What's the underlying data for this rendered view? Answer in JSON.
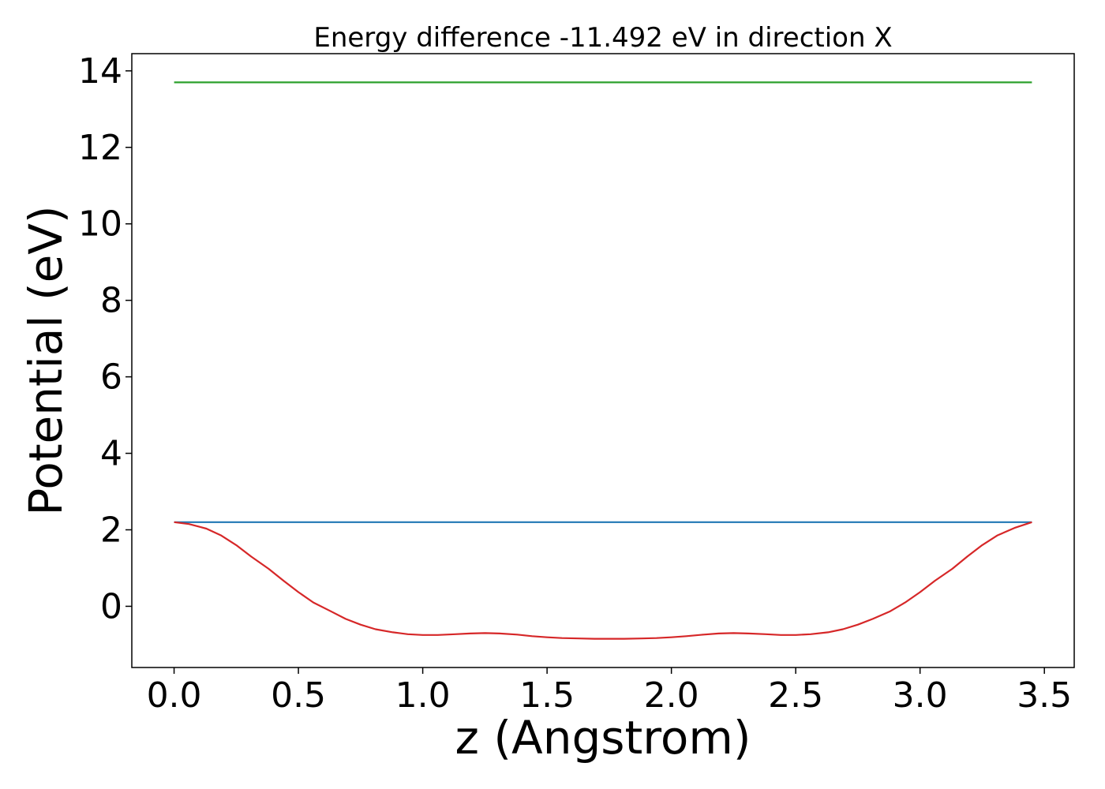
{
  "chart_data": {
    "type": "line",
    "title": "Energy difference -11.492 eV in direction X",
    "xlabel": "z (Angstrom)",
    "ylabel": "Potential (eV)",
    "xlim": [
      -0.17,
      3.62
    ],
    "ylim": [
      -1.6,
      14.45
    ],
    "xticks": [
      "0.0",
      "0.5",
      "1.0",
      "1.5",
      "2.0",
      "2.5",
      "3.0",
      "3.5"
    ],
    "yticks": [
      "0",
      "2",
      "4",
      "6",
      "8",
      "10",
      "12",
      "14"
    ],
    "grid": false,
    "series": [
      {
        "color": "#2ca02c",
        "x": [
          0.0,
          3.45
        ],
        "y": [
          13.7,
          13.7
        ]
      },
      {
        "color": "#1f77b4",
        "x": [
          0.0,
          3.45
        ],
        "y": [
          2.2,
          2.2
        ]
      },
      {
        "color": "#d62728",
        "x": [
          0.0,
          0.06,
          0.13,
          0.19,
          0.25,
          0.31,
          0.38,
          0.44,
          0.5,
          0.56,
          0.63,
          0.69,
          0.75,
          0.81,
          0.88,
          0.94,
          1.0,
          1.06,
          1.13,
          1.19,
          1.25,
          1.31,
          1.38,
          1.44,
          1.5,
          1.56,
          1.63,
          1.69,
          1.75,
          1.81,
          1.88,
          1.94,
          2.0,
          2.06,
          2.13,
          2.19,
          2.25,
          2.31,
          2.38,
          2.44,
          2.5,
          2.56,
          2.63,
          2.69,
          2.75,
          2.81,
          2.88,
          2.94,
          3.0,
          3.06,
          3.13,
          3.19,
          3.25,
          3.31,
          3.38,
          3.45
        ],
        "y": [
          2.2,
          2.15,
          2.03,
          1.85,
          1.6,
          1.3,
          0.98,
          0.67,
          0.37,
          0.1,
          -0.13,
          -0.33,
          -0.48,
          -0.6,
          -0.68,
          -0.73,
          -0.75,
          -0.75,
          -0.73,
          -0.71,
          -0.7,
          -0.71,
          -0.74,
          -0.78,
          -0.81,
          -0.83,
          -0.84,
          -0.85,
          -0.85,
          -0.85,
          -0.84,
          -0.83,
          -0.81,
          -0.78,
          -0.74,
          -0.71,
          -0.7,
          -0.71,
          -0.73,
          -0.75,
          -0.75,
          -0.73,
          -0.68,
          -0.6,
          -0.48,
          -0.33,
          -0.13,
          0.1,
          0.37,
          0.67,
          0.98,
          1.3,
          1.6,
          1.85,
          2.05,
          2.2
        ]
      }
    ]
  }
}
